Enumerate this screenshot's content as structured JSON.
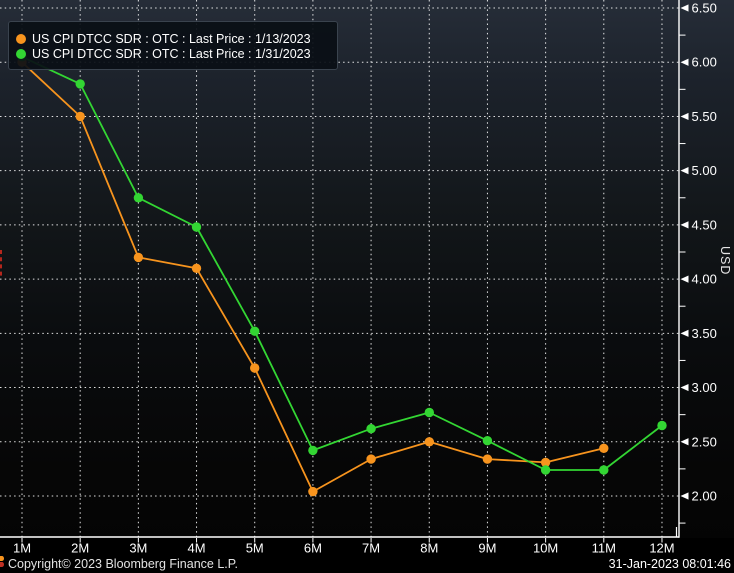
{
  "legend": {
    "items": [
      {
        "label": "US CPI DTCC SDR : OTC : Last Price : 1/13/2023",
        "color": "#F7941E"
      },
      {
        "label": "US CPI DTCC SDR : OTC : Last Price : 1/31/2023",
        "color": "#33D633"
      }
    ]
  },
  "footer": {
    "copyright": "Copyright© 2023 Bloomberg Finance L.P.",
    "timestamp": "31-Jan-2023 08:01:46"
  },
  "chart_data": {
    "type": "line",
    "title": "",
    "xlabel": "",
    "ylabel": "USD",
    "x_categories": [
      "1M",
      "2M",
      "3M",
      "4M",
      "5M",
      "6M",
      "7M",
      "8M",
      "9M",
      "10M",
      "11M",
      "12M"
    ],
    "series": [
      {
        "name": "US CPI DTCC SDR : OTC : Last Price : 1/13/2023",
        "color": "#F7941E",
        "values": [
          6.0,
          5.5,
          4.2,
          4.1,
          3.18,
          2.04,
          2.34,
          2.5,
          2.34,
          2.31,
          2.44,
          null
        ]
      },
      {
        "name": "US CPI DTCC SDR : OTC : Last Price : 1/31/2023",
        "color": "#33D633",
        "values": [
          6.05,
          5.8,
          4.75,
          4.48,
          3.52,
          2.42,
          2.62,
          2.77,
          2.51,
          2.24,
          2.24,
          2.65
        ]
      }
    ],
    "y_tick_labels": [
      "6.50",
      "6.00",
      "5.50",
      "5.00",
      "4.50",
      "4.00",
      "3.50",
      "3.00",
      "2.50",
      "2.00"
    ],
    "y_minor_tick_step": 0.25,
    "ylim": [
      1.62,
      6.57
    ],
    "grid": "dotted-white",
    "legend_position": "top-left",
    "axis_color": "#FFFFFF",
    "background": "dark-gradient"
  }
}
